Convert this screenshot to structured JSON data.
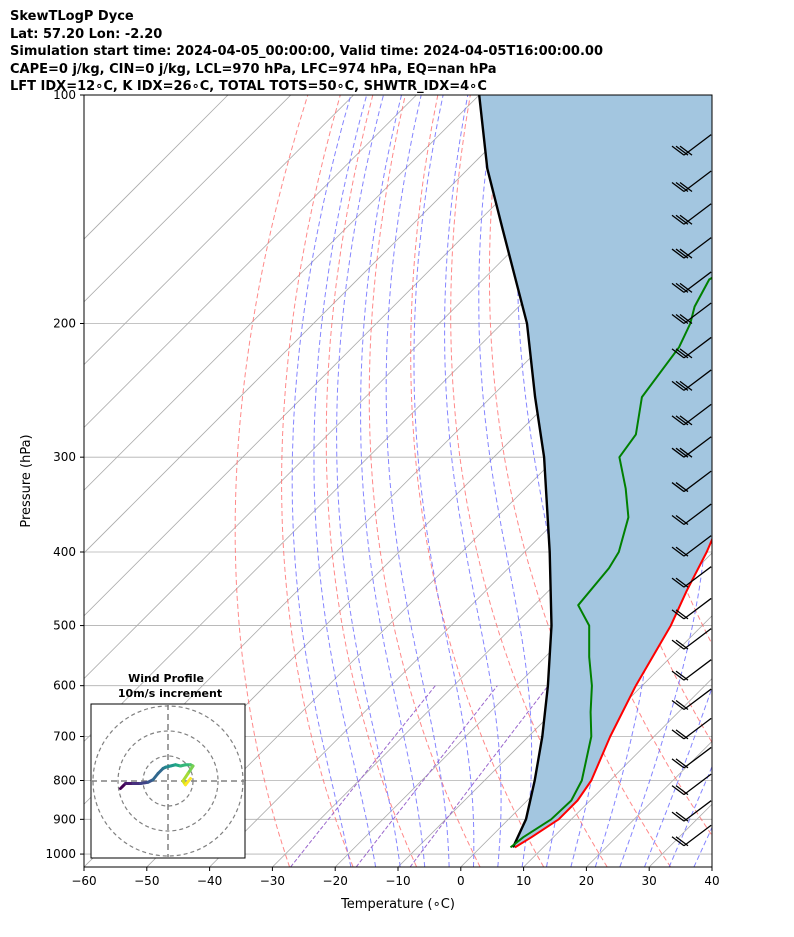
{
  "header": {
    "station": "SkewTLogP Dyce",
    "coords": "Lat: 57.20   Lon: -2.20",
    "times": "Simulation start time: 2024-04-05_00:00:00, Valid time: 2024-04-05T16:00:00.00",
    "indices1": "CAPE=0 j/kg, CIN=0 j/kg, LCL=970 hPa, LFC=974 hPa, EQ=nan hPa",
    "indices2": "LFT IDX=12∘C, K IDX=26∘C, TOTAL TOTS=50∘C, SHWTR_IDX=4∘C"
  },
  "chart_data": {
    "type": "skewt",
    "xlabel": "Temperature (∘C)",
    "ylabel": "Pressure (hPa)",
    "xlim": [
      -60,
      40
    ],
    "ylim": [
      1040,
      100
    ],
    "x_ticks": [
      "−60",
      "−50",
      "−40",
      "−30",
      "−20",
      "−10",
      "0",
      "10",
      "20",
      "30",
      "40"
    ],
    "x_tick_values": [
      -60,
      -50,
      -40,
      -30,
      -20,
      -10,
      0,
      10,
      20,
      30,
      40
    ],
    "y_ticks": [
      "1000",
      "900",
      "800",
      "700",
      "600",
      "500",
      "400",
      "300",
      "200",
      "100"
    ],
    "y_tick_values": [
      1000,
      900,
      800,
      700,
      600,
      500,
      400,
      300,
      200,
      100
    ],
    "colors": {
      "temperature": "#ff0000",
      "dewpoint": "#008000",
      "parcel": "#000000",
      "cape_fill": "#a3c6e0",
      "dry_adiabats": "#ff6b6b",
      "moist_adiabats": "#6666ff",
      "mixing_ratio": "#9966cc",
      "isotherms": "#aaaaaa"
    },
    "temperature": {
      "p": [
        980,
        950,
        900,
        850,
        800,
        700,
        600,
        500,
        450,
        400,
        350,
        300,
        270,
        255,
        240,
        225,
        210,
        200,
        190,
        170,
        150,
        125,
        100
      ],
      "t": [
        5.5,
        6.5,
        8,
        8,
        7,
        3,
        -1,
        -5,
        -8,
        -11,
        -15,
        -19,
        -20,
        -19,
        -18,
        -17.2,
        -16,
        -15.5,
        -14.5,
        -13.5,
        -13,
        -12,
        -11.5
      ]
    },
    "dewpoint": {
      "p": [
        980,
        950,
        900,
        850,
        800,
        700,
        650,
        600,
        550,
        500,
        470,
        420,
        400,
        360,
        330,
        300,
        280,
        250,
        215,
        200,
        190,
        175,
        155,
        130,
        100
      ],
      "t": [
        4.8,
        5.2,
        6.8,
        7,
        5.5,
        0,
        -4,
        -8,
        -13,
        -18,
        -23,
        -24,
        -25,
        -29,
        -34,
        -40,
        -41,
        -46,
        -48,
        -50,
        -52,
        -54,
        -50,
        -45,
        -40
      ]
    },
    "parcel": {
      "p": [
        980,
        900,
        800,
        700,
        600,
        500,
        400,
        300,
        250,
        200,
        150,
        125,
        100
      ],
      "t": [
        5.2,
        2.8,
        -2,
        -7.8,
        -15,
        -24,
        -36,
        -52,
        -63,
        -76,
        -95,
        -107,
        -120
      ]
    },
    "wind_barbs": {
      "p": [
        975,
        905,
        835,
        770,
        705,
        645,
        590,
        537,
        490,
        445,
        405,
        368,
        333,
        300,
        272,
        245,
        222,
        200,
        182,
        164,
        148,
        134,
        120
      ],
      "speed_kt": [
        15,
        20,
        20,
        20,
        20,
        20,
        20,
        20,
        20,
        20,
        20,
        20,
        20,
        25,
        25,
        25,
        25,
        30,
        30,
        30,
        30,
        30,
        30
      ]
    },
    "hodograph": {
      "title": "Wind Profile",
      "subtitle": "10m/s increment",
      "u": [
        -19,
        -18,
        -17,
        -14,
        -11,
        -8,
        -6,
        -4,
        -2,
        -1,
        1,
        3,
        5,
        7,
        9,
        10,
        8,
        6,
        7,
        9
      ],
      "v": [
        -3,
        -2,
        -1,
        -1,
        -1,
        -0.5,
        0.5,
        3,
        5,
        5.5,
        6,
        6.5,
        6,
        6.5,
        6.5,
        6,
        3,
        0,
        -1.5,
        1
      ]
    }
  }
}
